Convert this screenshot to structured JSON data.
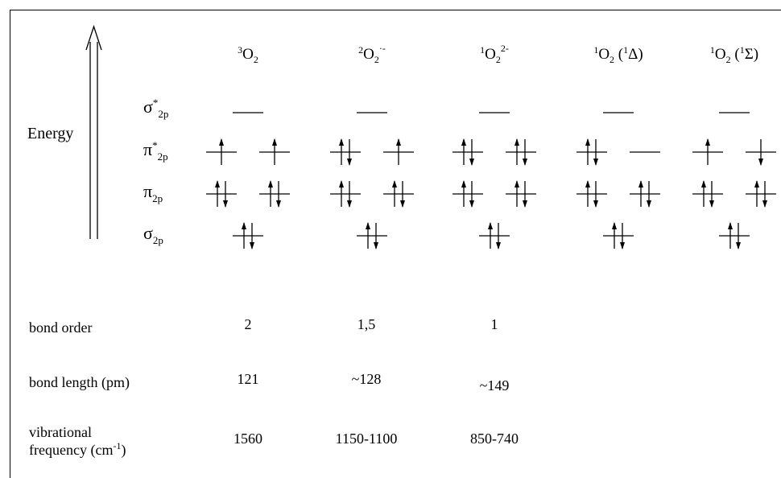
{
  "energy_label": "Energy",
  "orbitals": [
    {
      "key": "sigma_star",
      "symbol": "σ",
      "star": "*",
      "sub": "2p"
    },
    {
      "key": "pi_star",
      "symbol": "π",
      "star": "*",
      "sub": "2p"
    },
    {
      "key": "pi",
      "symbol": "π",
      "star": "",
      "sub": "2p"
    },
    {
      "key": "sigma",
      "symbol": "σ",
      "star": "",
      "sub": "2p"
    }
  ],
  "species": [
    {
      "pre": "3",
      "base": "O",
      "sub": "2",
      "sup": "",
      "paren": null,
      "sigma_star": [
        ""
      ],
      "pi_star": [
        "u",
        "u"
      ],
      "pi": [
        "ud",
        "ud"
      ],
      "sigma": [
        "ud"
      ]
    },
    {
      "pre": "2",
      "base": "O",
      "sub": "2",
      "sup": "·-",
      "paren": null,
      "sigma_star": [
        ""
      ],
      "pi_star": [
        "ud",
        "u"
      ],
      "pi": [
        "ud",
        "ud"
      ],
      "sigma": [
        "ud"
      ]
    },
    {
      "pre": "1",
      "base": "O",
      "sub": "2",
      "sup": "2-",
      "paren": null,
      "sigma_star": [
        ""
      ],
      "pi_star": [
        "ud",
        "ud"
      ],
      "pi": [
        "ud",
        "ud"
      ],
      "sigma": [
        "ud"
      ]
    },
    {
      "pre": "1",
      "base": "O",
      "sub": "2",
      "sup": "",
      "paren": {
        "pre": "1",
        "sym": "Δ"
      },
      "sigma_star": [
        ""
      ],
      "pi_star": [
        "ud",
        ""
      ],
      "pi": [
        "ud",
        "ud"
      ],
      "sigma": [
        "ud"
      ]
    },
    {
      "pre": "1",
      "base": "O",
      "sub": "2",
      "sup": "",
      "paren": {
        "pre": "1",
        "sym": "Σ"
      },
      "sigma_star": [
        ""
      ],
      "pi_star": [
        "u",
        "d"
      ],
      "pi": [
        "ud",
        "ud"
      ],
      "sigma": [
        "ud"
      ]
    }
  ],
  "properties": [
    {
      "label_lines": [
        "bond order"
      ],
      "values": [
        "2",
        "1,5",
        "1"
      ]
    },
    {
      "label_lines": [
        "bond length (pm)"
      ],
      "values": [
        "121",
        "~128",
        "~149"
      ]
    },
    {
      "label_lines": [
        "vibrational",
        "frequency  (cm-1)"
      ],
      "label_sup": {
        "base": "frequency  (cm",
        "sup": "-1",
        "tail": ")"
      },
      "values": [
        "1560",
        "1150-1100",
        "850-740"
      ]
    }
  ]
}
